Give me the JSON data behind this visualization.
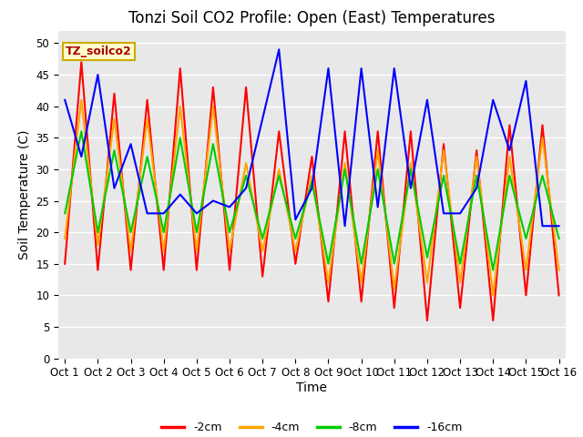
{
  "title": "Tonzi Soil CO2 Profile: Open (East) Temperatures",
  "xlabel": "Time",
  "ylabel": "Soil Temperature (C)",
  "ylim": [
    0,
    52
  ],
  "yticks": [
    0,
    5,
    10,
    15,
    20,
    25,
    30,
    35,
    40,
    45,
    50
  ],
  "x_labels": [
    "Oct 1",
    "Oct 2",
    "Oct 3",
    "Oct 4",
    "Oct 5",
    "Oct 6",
    "Oct 7",
    "Oct 8",
    "Oct 9",
    "Oct 10",
    "Oct 11",
    "Oct 12",
    "Oct 13",
    "Oct 14",
    "Oct 15",
    "Oct 16"
  ],
  "legend_label": "TZ_soilco2",
  "series": {
    "-2cm": {
      "color": "#ff0000",
      "data": [
        15,
        47,
        14,
        42,
        14,
        41,
        14,
        46,
        14,
        43,
        14,
        43,
        13,
        36,
        15,
        32,
        9,
        36,
        9,
        36,
        8,
        36,
        6,
        34,
        8,
        33,
        6,
        37,
        10,
        37,
        10
      ]
    },
    "-4cm": {
      "color": "#ffa500",
      "data": [
        19,
        41,
        18,
        38,
        17,
        38,
        17,
        40,
        17,
        40,
        17,
        31,
        17,
        30,
        17,
        29,
        12,
        31,
        12,
        33,
        11,
        31,
        12,
        33,
        12,
        32,
        10,
        32,
        14,
        35,
        14
      ]
    },
    "-8cm": {
      "color": "#00cc00",
      "data": [
        23,
        36,
        20,
        33,
        20,
        32,
        20,
        35,
        20,
        34,
        20,
        29,
        19,
        29,
        19,
        28,
        15,
        30,
        15,
        30,
        15,
        30,
        16,
        29,
        15,
        29,
        14,
        29,
        19,
        29,
        19
      ]
    },
    "-16cm": {
      "color": "#0000ff",
      "data": [
        41,
        32,
        45,
        27,
        34,
        23,
        23,
        26,
        23,
        25,
        24,
        27,
        38,
        49,
        22,
        27,
        46,
        21,
        46,
        24,
        46,
        27,
        41,
        23,
        23,
        27,
        41,
        33,
        44,
        21,
        21
      ]
    }
  },
  "fig_bg_color": "#ffffff",
  "plot_bg_color": "#e8e8e8",
  "grid_color": "#ffffff",
  "title_fontsize": 12,
  "axis_label_fontsize": 10,
  "tick_fontsize": 8.5,
  "legend_box_facecolor": "#ffffcc",
  "legend_box_edgecolor": "#ccaa00",
  "legend_text_color": "#aa0000",
  "line_width": 1.5
}
